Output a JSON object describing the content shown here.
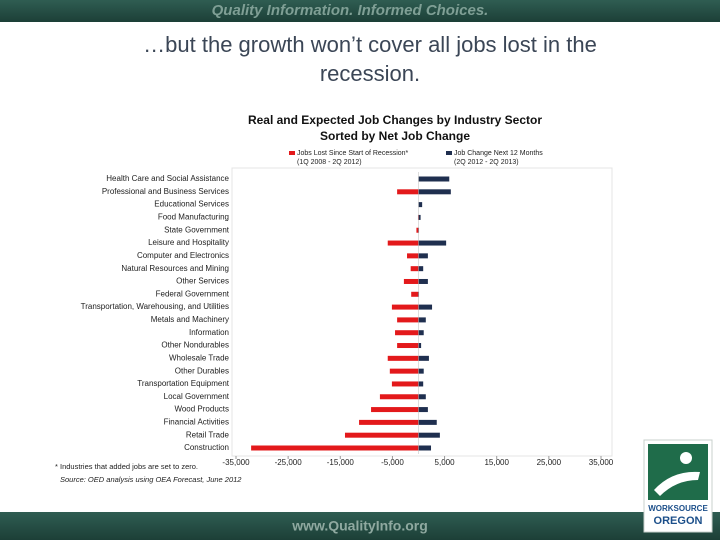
{
  "header": "Quality Information. Informed Choices.",
  "slide_title": [
    "…but the growth won’t cover all jobs lost in the",
    "recession."
  ],
  "chart_data": {
    "type": "bar",
    "orientation": "horizontal",
    "title": "Real and Expected Job Changes by Industry Sector",
    "subtitle": "Sorted by Net Job Change",
    "categories": [
      "Health Care and Social Assistance",
      "Professional and Business Services",
      "Educational Services",
      "Food Manufacturing",
      "State Government",
      "Leisure and Hospitality",
      "Computer and Electronics",
      "Natural Resources and Mining",
      "Other Services",
      "Federal Government",
      "Transportation, Warehousing, and Utilities",
      "Metals and Machinery",
      "Information",
      "Other Nondurables",
      "Wholesale Trade",
      "Other Durables",
      "Transportation Equipment",
      "Local Government",
      "Wood Products",
      "Financial Activities",
      "Retail Trade",
      "Construction"
    ],
    "series": [
      {
        "name": "Jobs Lost Since Start of Recession*",
        "note": "(1Q 2008 - 2Q 2012)",
        "color": "#e3191b",
        "values": [
          0,
          -4100,
          0,
          -100,
          -400,
          -5900,
          -2200,
          -1500,
          -2800,
          -1400,
          -5100,
          -4100,
          -4500,
          -4100,
          -5900,
          -5500,
          -5100,
          -7400,
          -9100,
          -11400,
          -14100,
          -32100
        ]
      },
      {
        "name": "Job Change Next 12 Months",
        "note": "(2Q 2012 - 2Q 2013)",
        "color": "#1f2f4f",
        "values": [
          5900,
          6200,
          700,
          400,
          100,
          5300,
          1800,
          900,
          1800,
          100,
          2600,
          1400,
          1000,
          500,
          2000,
          1000,
          900,
          1400,
          1800,
          3500,
          4100,
          2400
        ]
      }
    ],
    "xlim": [
      -35000,
      35000
    ],
    "xticks": [
      {
        "value": -35000,
        "label": "-35,000"
      },
      {
        "value": -25000,
        "label": "-25,000"
      },
      {
        "value": -15000,
        "label": "-15,000"
      },
      {
        "value": -5000,
        "label": "-5,000"
      },
      {
        "value": 5000,
        "label": "5,000"
      },
      {
        "value": 15000,
        "label": "15,000"
      },
      {
        "value": 25000,
        "label": "25,000"
      },
      {
        "value": 35000,
        "label": "35,000"
      }
    ],
    "footnotes": [
      "* Industries that added jobs are set to zero.",
      "Source: OED analysis using OEA Forecast, June 2012"
    ]
  },
  "footer": "www.QualityInfo.org",
  "logo": [
    "WORKSOURCE",
    "OREGON"
  ]
}
